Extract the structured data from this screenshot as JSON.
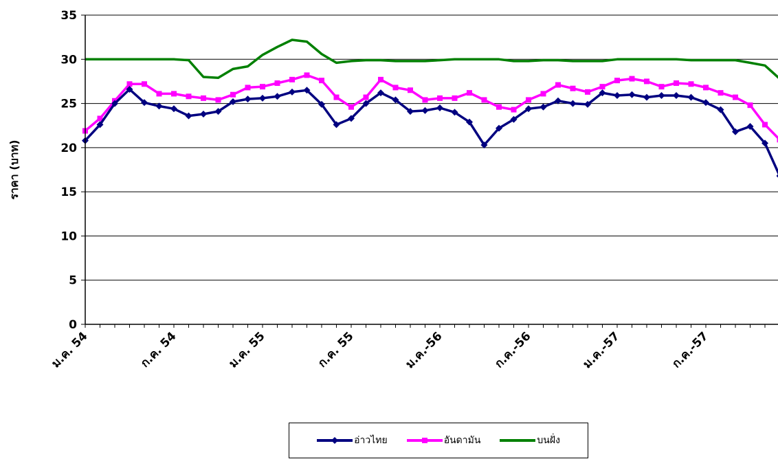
{
  "chart_data": {
    "type": "line",
    "title": "",
    "xlabel": "",
    "ylabel": "ราคา (บาท)",
    "ylim": [
      0,
      35
    ],
    "yticks": [
      0,
      5,
      10,
      15,
      20,
      25,
      30,
      35
    ],
    "grid": true,
    "legend_position": "bottom",
    "x_tick_labels": [
      {
        "index": 0,
        "label": "ม.ค. 54"
      },
      {
        "index": 6,
        "label": "ก.ค. 54"
      },
      {
        "index": 12,
        "label": "ม.ค. 55"
      },
      {
        "index": 18,
        "label": "ก.ค. 55"
      },
      {
        "index": 24,
        "label": "ม.ค.-56"
      },
      {
        "index": 30,
        "label": "ก.ค.-56"
      },
      {
        "index": 36,
        "label": "ม.ค.-57"
      },
      {
        "index": 42,
        "label": "ก.ค.-57"
      }
    ],
    "x_count": 48,
    "series": [
      {
        "name": "อ่าวไทย",
        "color": "#000080",
        "marker": "diamond",
        "values": [
          20.8,
          22.6,
          25.0,
          26.6,
          25.1,
          24.7,
          24.4,
          23.6,
          23.8,
          24.1,
          25.2,
          25.5,
          25.6,
          25.8,
          26.3,
          26.5,
          24.9,
          22.6,
          23.3,
          25.0,
          26.2,
          25.4,
          24.1,
          24.2,
          24.5,
          24.0,
          22.9,
          20.3,
          22.2,
          23.2,
          24.4,
          24.6,
          25.3,
          25.0,
          24.9,
          26.2,
          25.9,
          26.0,
          25.7,
          25.9,
          25.9,
          25.7,
          25.1,
          24.3,
          21.8,
          22.4,
          20.5,
          16.8
        ]
      },
      {
        "name": "อันดามัน",
        "color": "#FF00FF",
        "marker": "square",
        "values": [
          21.9,
          23.3,
          25.3,
          27.2,
          27.2,
          26.1,
          26.1,
          25.8,
          25.6,
          25.4,
          26.0,
          26.8,
          26.9,
          27.3,
          27.7,
          28.2,
          27.6,
          25.7,
          24.6,
          25.7,
          27.7,
          26.8,
          26.5,
          25.4,
          25.6,
          25.6,
          26.2,
          25.4,
          24.6,
          24.3,
          25.4,
          26.1,
          27.1,
          26.7,
          26.3,
          26.9,
          27.6,
          27.8,
          27.5,
          26.9,
          27.3,
          27.2,
          26.8,
          26.2,
          25.7,
          24.8,
          22.6,
          20.9
        ]
      },
      {
        "name": "บนฝั่ง",
        "color": "#008000",
        "marker": "none",
        "values": [
          30.0,
          30.0,
          30.0,
          30.0,
          30.0,
          30.0,
          30.0,
          29.9,
          28.0,
          27.9,
          28.9,
          29.2,
          30.5,
          31.4,
          32.2,
          32.0,
          30.6,
          29.6,
          29.8,
          29.9,
          29.9,
          29.8,
          29.8,
          29.8,
          29.9,
          30.0,
          30.0,
          30.0,
          30.0,
          29.8,
          29.8,
          29.9,
          29.9,
          29.8,
          29.8,
          29.8,
          30.0,
          30.0,
          30.0,
          30.0,
          30.0,
          29.9,
          29.9,
          29.9,
          29.9,
          29.6,
          29.3,
          27.8
        ]
      }
    ]
  }
}
